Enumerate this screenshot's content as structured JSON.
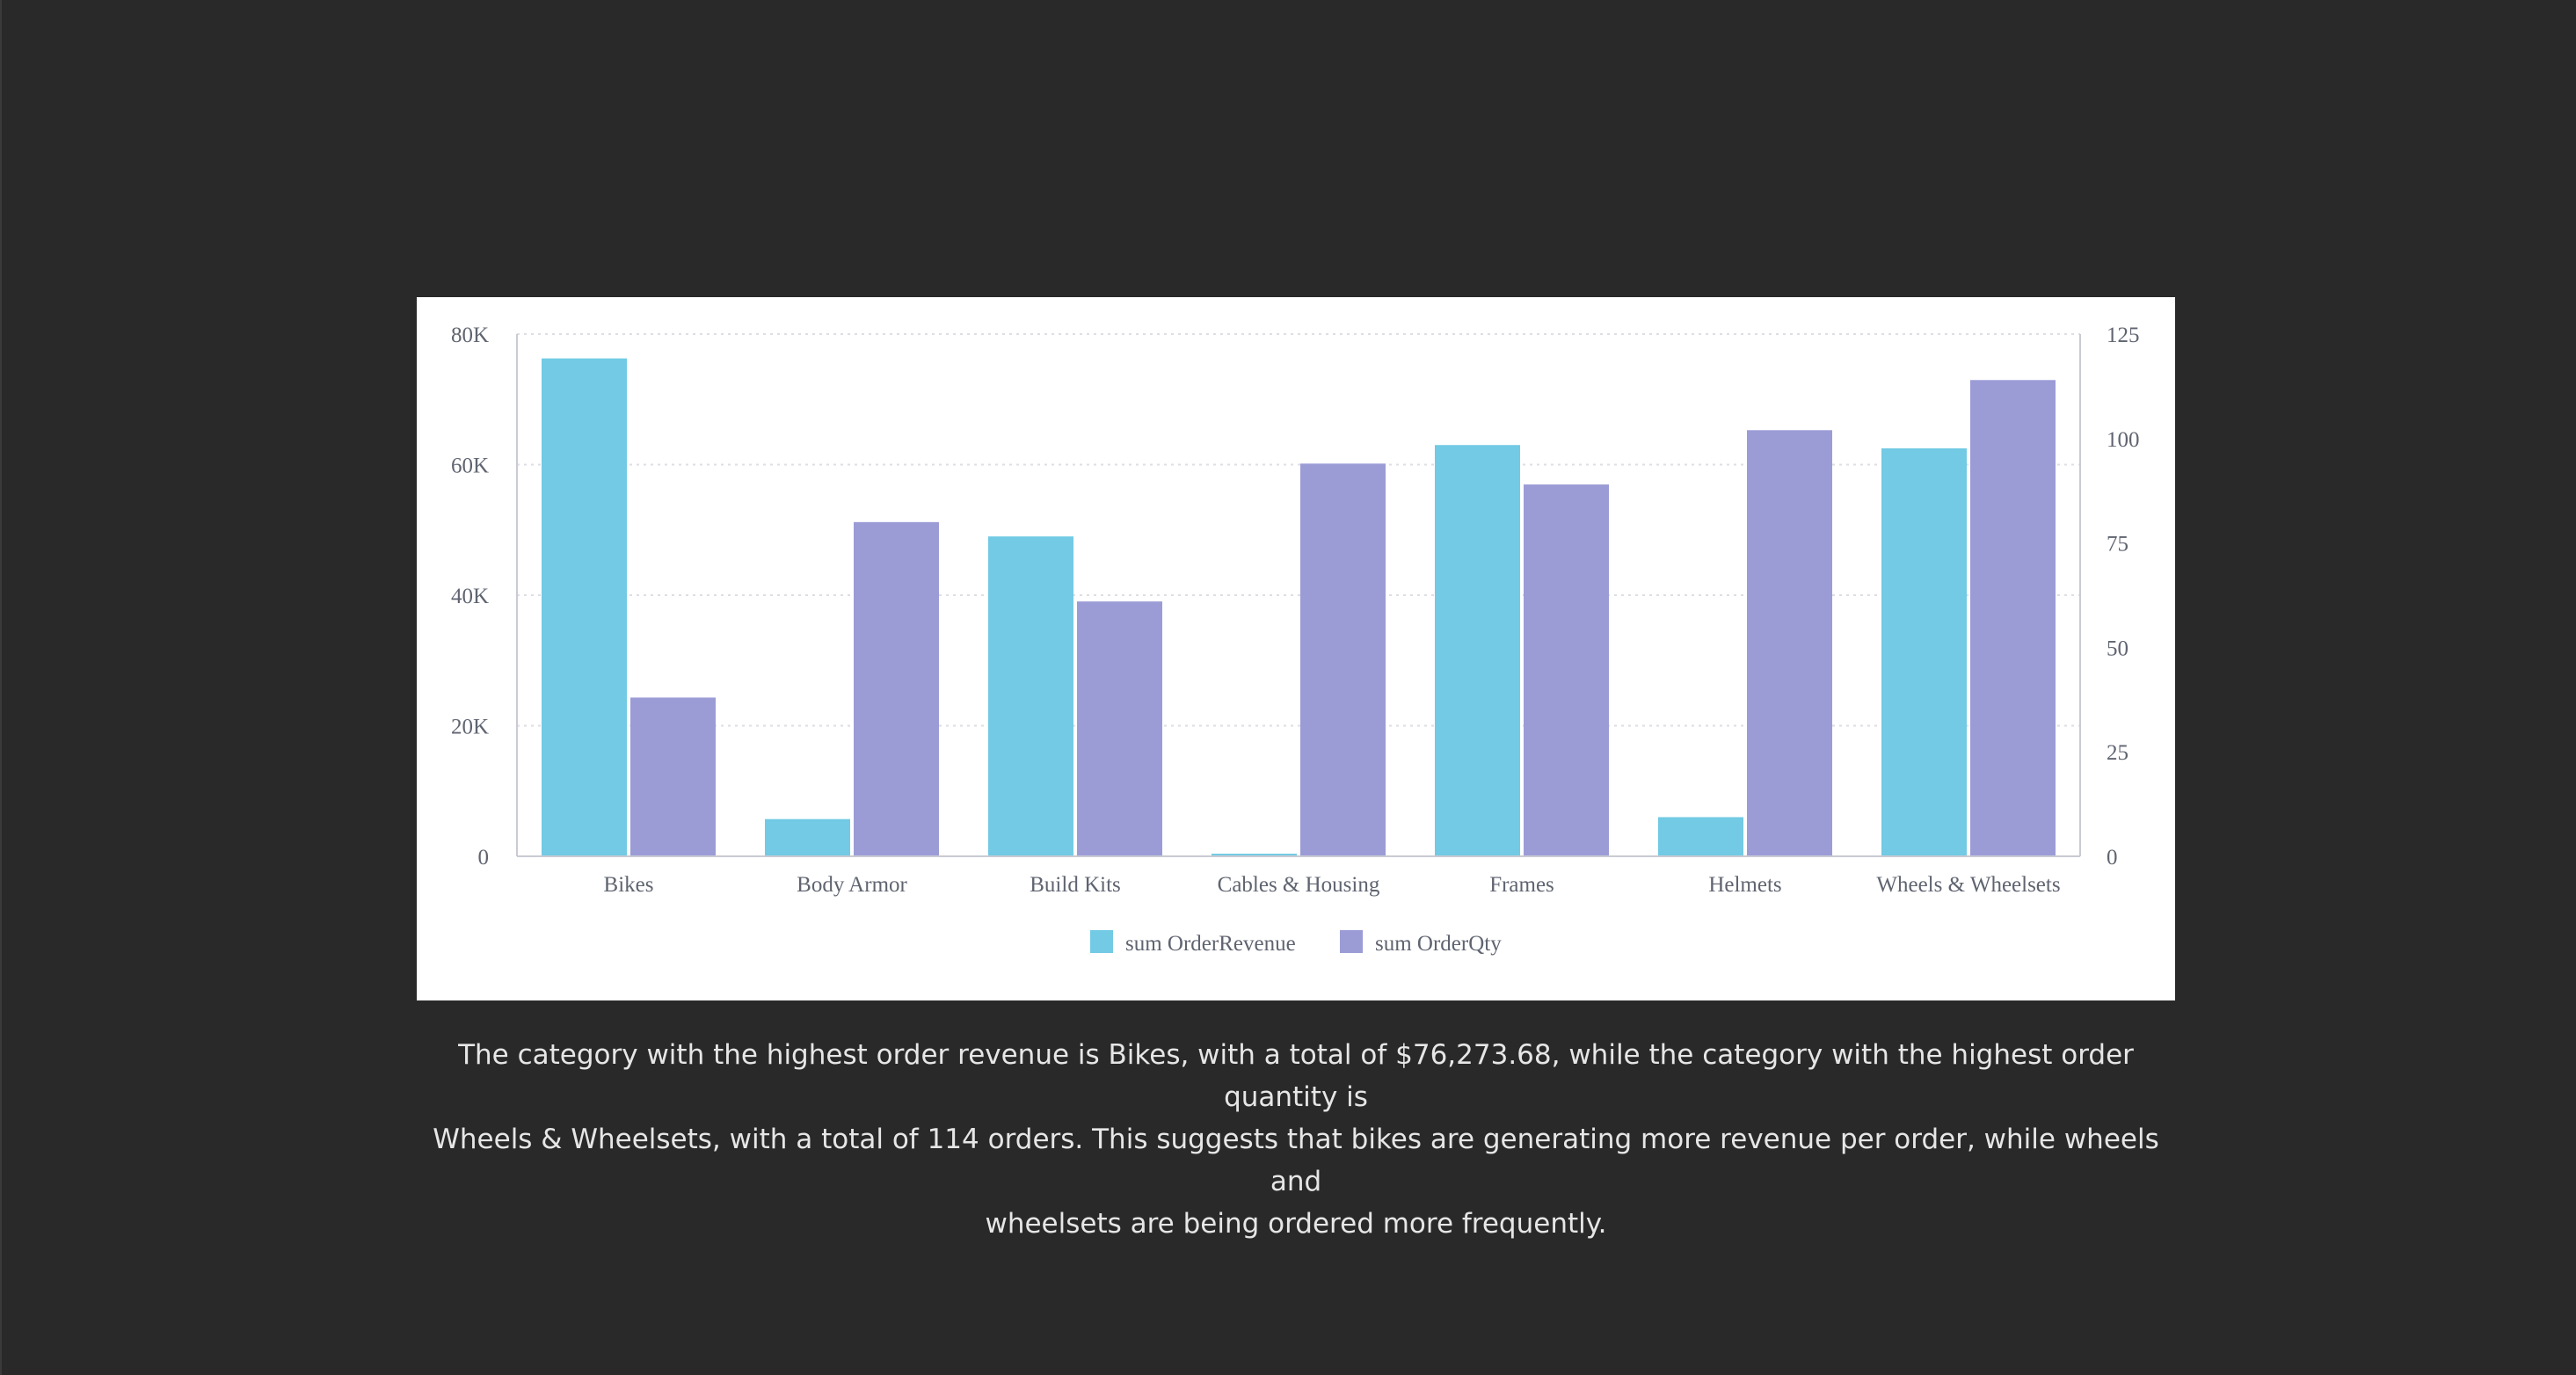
{
  "colors": {
    "background": "#292929",
    "card": "#ffffff",
    "revenue": "#72cae4",
    "qty": "#9b9cd6",
    "axis": "#c8cbd2",
    "grid": "#dcdee3",
    "caption": "#e6e6e6"
  },
  "chart_data": {
    "type": "bar",
    "title": "",
    "xlabel": "",
    "ylabel": "",
    "categories": [
      "Bikes",
      "Body Armor",
      "Build Kits",
      "Cables & Housing",
      "Frames",
      "Helmets",
      "Wheels & Wheelsets"
    ],
    "series": [
      {
        "name": "sum OrderRevenue",
        "axis": "left",
        "values": [
          76273.68,
          5700,
          49000,
          400,
          63000,
          6000,
          62500
        ]
      },
      {
        "name": "sum OrderQty",
        "axis": "right",
        "values": [
          38,
          80,
          61,
          94,
          89,
          102,
          114
        ]
      }
    ],
    "ylim_left": [
      0,
      80000
    ],
    "ylim_right": [
      0,
      125
    ],
    "left_ticks": [
      "0",
      "20K",
      "40K",
      "60K",
      "80K"
    ],
    "right_ticks": [
      "0",
      "25",
      "50",
      "75",
      "100",
      "125"
    ],
    "grid": true,
    "legend_position": "bottom-center"
  },
  "caption": {
    "lines": [
      "The category with the highest order revenue is Bikes, with a total of $76,273.68, while the category with the highest order quantity is",
      "Wheels & Wheelsets, with a total of 114 orders. This suggests that bikes are generating more revenue per order, while wheels and",
      "wheelsets are being ordered more frequently."
    ]
  }
}
